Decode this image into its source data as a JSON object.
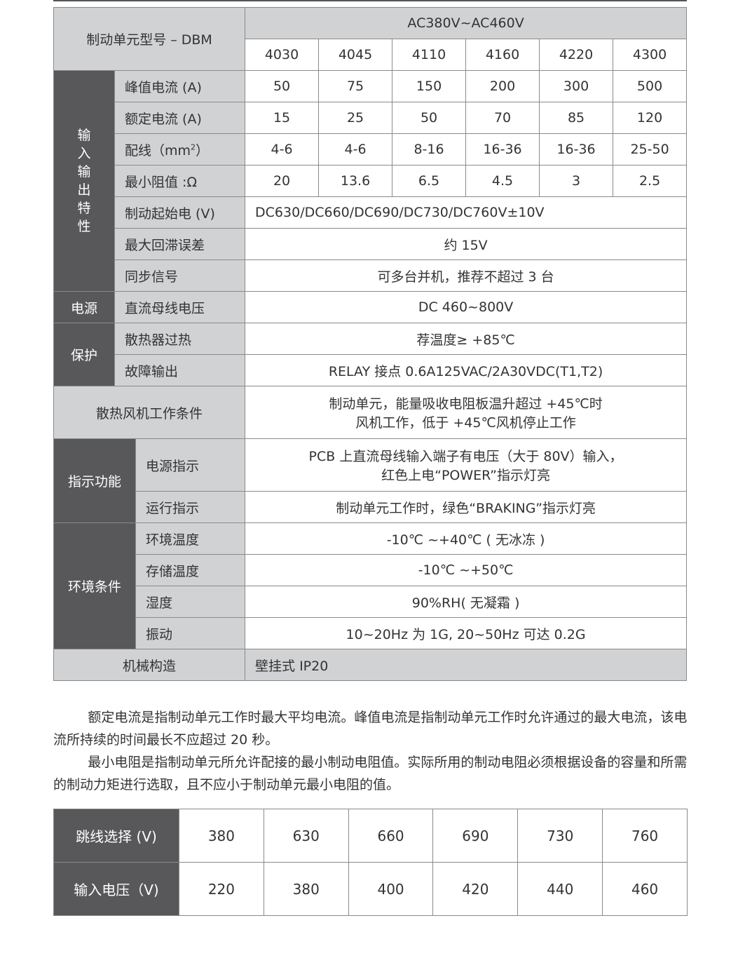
{
  "spec": {
    "model_label": "制动单元型号 – DBM",
    "voltage_range": "AC380V~AC460V",
    "models": [
      "4030",
      "4045",
      "4110",
      "4160",
      "4220",
      "4300"
    ],
    "io_group": "输入输出特性",
    "peak_current": {
      "label": "峰值电流 (A)",
      "values": [
        "50",
        "75",
        "150",
        "200",
        "300",
        "500"
      ]
    },
    "rated_current": {
      "label": "额定电流 (A)",
      "values": [
        "15",
        "25",
        "50",
        "70",
        "85",
        "120"
      ]
    },
    "wiring": {
      "label": "配线（mm",
      "sup": "2",
      "label_end": "）",
      "values": [
        "4-6",
        "4-6",
        "8-16",
        "16-36",
        "16-36",
        "25-50"
      ]
    },
    "min_resistance": {
      "label": "最小阻值 :Ω",
      "values": [
        "20",
        "13.6",
        "6.5",
        "4.5",
        "3",
        "2.5"
      ]
    },
    "start_voltage": {
      "label": "制动起始电 (V)",
      "value": "DC630/DC660/DC690/DC730/DC760V±10V"
    },
    "hysteresis": {
      "label": "最大回滞误差",
      "value": "约 15V"
    },
    "sync": {
      "label": "同步信号",
      "value": "可多台并机，推荐不超过 3 台"
    },
    "power_group": "电源",
    "dc_bus": {
      "label": "直流母线电压",
      "value": "DC 460~800V"
    },
    "protect_group": "保护",
    "overheat": {
      "label": "散热器过热",
      "value": "荐温度≥ +85℃"
    },
    "fault": {
      "label": "故障输出",
      "value": "RELAY 接点 0.6A125VAC/2A30VDC(T1,T2)"
    },
    "fan": {
      "label": "散热风机工作条件",
      "line1": "制动单元，能量吸收电阻板温升超过 +45℃时",
      "line2": "风机工作，低于 +45℃风机停止工作"
    },
    "indicator_group": "指示功能",
    "power_ind": {
      "label": "电源指示",
      "line1": "PCB 上直流母线输入端子有电压（大于 80V）输入，",
      "line2": "红色上电“POWER”指示灯亮"
    },
    "run_ind": {
      "label": "运行指示",
      "value": "制动单元工作时，绿色“BRAKING”指示灯亮"
    },
    "env_group": "环境条件",
    "env_temp": {
      "label": "环境温度",
      "value": "-10℃ ~+40℃ ( 无冰冻 )"
    },
    "storage_temp": {
      "label": "存储温度",
      "value": "-10℃ ~+50℃"
    },
    "humidity": {
      "label": "湿度",
      "value": "90%RH( 无凝霜 )"
    },
    "vibration": {
      "label": "振动",
      "value": "10~20Hz 为 1G, 20~50Hz 可达 0.2G"
    },
    "mechanical": {
      "label": "机械构造",
      "value": "壁挂式 IP20"
    }
  },
  "notes": [
    "额定电流是指制动单元工作时最大平均电流。峰值电流是指制动单元工作时允许通过的最大电流，该电流所持续的时间最长不应超过 20 秒。",
    "最小电阻是指制动单元所允许配接的最小制动电阻值。实际所用的制动电阻必须根据设备的容量和所需的制动力矩进行选取，且不应小于制动单元最小电阻的值。"
  ],
  "jumper": {
    "row1_label": "跳线选择 (V)",
    "row1": [
      "380",
      "630",
      "660",
      "690",
      "730",
      "760"
    ],
    "row2_label": "输入电压（V)",
    "row2": [
      "220",
      "380",
      "400",
      "420",
      "440",
      "460"
    ]
  }
}
